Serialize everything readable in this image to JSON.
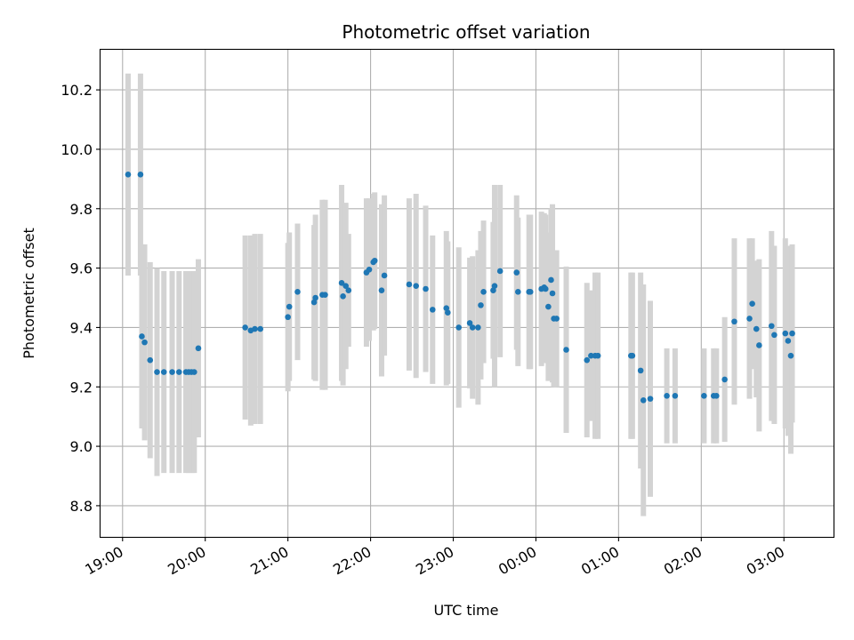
{
  "chart_data": {
    "type": "scatter",
    "title": "Photometric offset variation",
    "xlabel": "UTC time",
    "ylabel": "Photometric offset",
    "grid": true,
    "x_axis_kind": "time",
    "xlim": [
      "18:44",
      "03:36"
    ],
    "ylim": [
      8.695,
      10.335
    ],
    "x_ticks": [
      "19:00",
      "20:00",
      "21:00",
      "22:00",
      "23:00",
      "00:00",
      "01:00",
      "02:00",
      "03:00"
    ],
    "y_ticks": [
      8.8,
      9.0,
      9.2,
      9.4,
      9.6,
      9.8,
      10.0,
      10.2
    ],
    "y_tick_labels": [
      "8.8",
      "9.0",
      "9.2",
      "9.4",
      "9.6",
      "9.8",
      "10.0",
      "10.2"
    ],
    "marker_color": "#1f77b4",
    "errorbar_color": "#d3d3d3",
    "series": [
      {
        "x": [
          "19:04",
          "19:13",
          "19:14",
          "19:16",
          "19:20",
          "19:25",
          "19:30",
          "19:36",
          "19:41",
          "19:46",
          "19:48",
          "19:50",
          "19:52",
          "19:55",
          "20:29",
          "20:33",
          "20:36",
          "20:40",
          "21:00",
          "21:01",
          "21:07",
          "21:19",
          "21:20",
          "21:25",
          "21:27",
          "21:39",
          "21:40",
          "21:42",
          "21:44",
          "21:57",
          "21:59",
          "22:02",
          "22:03",
          "22:08",
          "22:10",
          "22:28",
          "22:33",
          "22:40",
          "22:45",
          "22:55",
          "22:56",
          "23:04",
          "23:12",
          "23:14",
          "23:18",
          "23:20",
          "23:22",
          "23:29",
          "23:30",
          "23:34",
          "23:46",
          "23:47",
          "23:55",
          "23:56",
          "24:04",
          "24:06",
          "24:07",
          "24:09",
          "24:11",
          "24:12",
          "24:13",
          "24:15",
          "24:22",
          "24:37",
          "24:40",
          "24:43",
          "24:45",
          "25:09",
          "25:10",
          "25:16",
          "25:18",
          "25:23",
          "25:35",
          "25:41",
          "26:02",
          "26:09",
          "26:11",
          "26:17",
          "26:24",
          "26:35",
          "26:37",
          "26:40",
          "26:42",
          "26:51",
          "26:53",
          "27:01",
          "27:03",
          "27:05",
          "27:06"
        ],
        "y": [
          9.915,
          9.915,
          9.37,
          9.35,
          9.29,
          9.25,
          9.25,
          9.25,
          9.25,
          9.25,
          9.25,
          9.25,
          9.25,
          9.33,
          9.4,
          9.39,
          9.395,
          9.395,
          9.435,
          9.47,
          9.52,
          9.485,
          9.5,
          9.51,
          9.51,
          9.55,
          9.505,
          9.54,
          9.525,
          9.585,
          9.595,
          9.62,
          9.625,
          9.525,
          9.575,
          9.545,
          9.54,
          9.53,
          9.46,
          9.465,
          9.45,
          9.4,
          9.415,
          9.4,
          9.4,
          9.475,
          9.52,
          9.525,
          9.54,
          9.59,
          9.585,
          9.52,
          9.52,
          9.52,
          9.53,
          9.535,
          9.53,
          9.47,
          9.56,
          9.515,
          9.43,
          9.43,
          9.325,
          9.29,
          9.305,
          9.305,
          9.305,
          9.305,
          9.305,
          9.255,
          9.155,
          9.16,
          9.17,
          9.17,
          9.17,
          9.17,
          9.17,
          9.225,
          9.42,
          9.43,
          9.48,
          9.395,
          9.34,
          9.405,
          9.375,
          9.38,
          9.355,
          9.305,
          9.38
        ],
        "err": [
          0.34,
          0.34,
          0.31,
          0.33,
          0.33,
          0.35,
          0.34,
          0.34,
          0.34,
          0.34,
          0.34,
          0.34,
          0.34,
          0.3,
          0.31,
          0.32,
          0.32,
          0.32,
          0.25,
          0.25,
          0.23,
          0.26,
          0.28,
          0.32,
          0.32,
          0.33,
          0.3,
          0.28,
          0.19,
          0.25,
          0.24,
          0.23,
          0.23,
          0.29,
          0.27,
          0.29,
          0.31,
          0.28,
          0.25,
          0.26,
          0.24,
          0.27,
          0.22,
          0.24,
          0.26,
          0.25,
          0.24,
          0.23,
          0.34,
          0.29,
          0.26,
          0.25,
          0.26,
          0.26,
          0.26,
          0.25,
          0.25,
          0.25,
          0.24,
          0.3,
          0.23,
          0.23,
          0.28,
          0.26,
          0.22,
          0.28,
          0.28,
          0.28,
          0.28,
          0.33,
          0.39,
          0.33,
          0.16,
          0.16,
          0.16,
          0.16,
          0.16,
          0.21,
          0.28,
          0.27,
          0.22,
          0.23,
          0.29,
          0.32,
          0.3,
          0.32,
          0.32,
          0.33,
          0.3
        ]
      }
    ]
  }
}
